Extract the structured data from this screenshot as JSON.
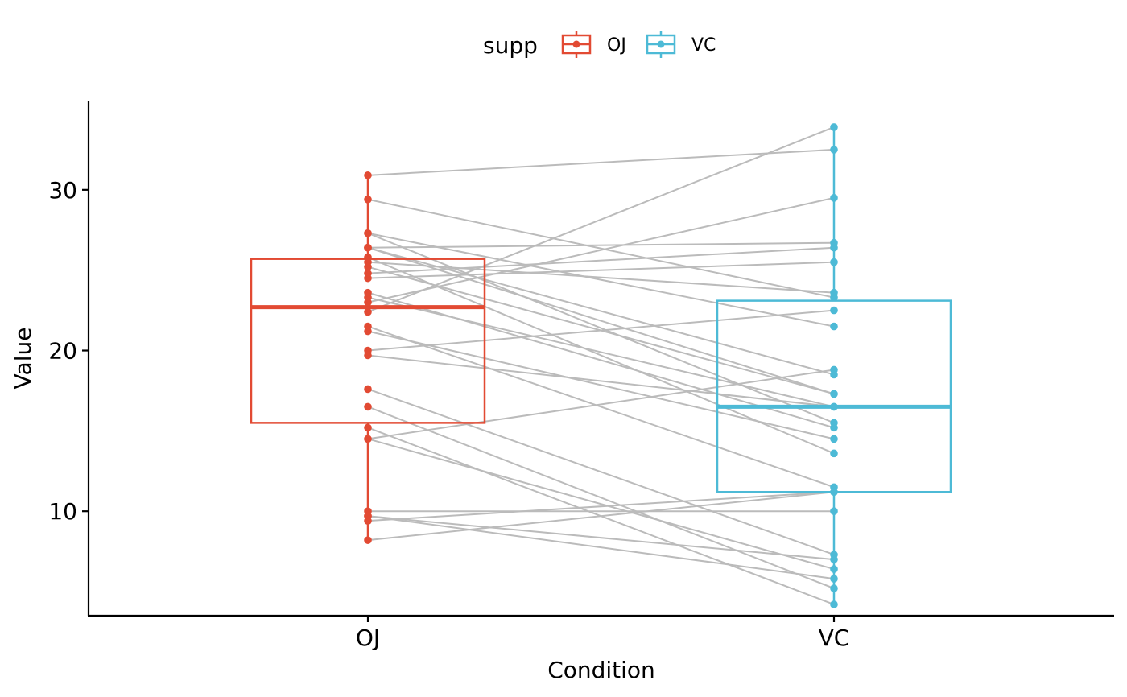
{
  "chart_data": {
    "type": "box",
    "xlabel": "Condition",
    "ylabel": "Value",
    "categories": [
      "OJ",
      "VC"
    ],
    "ylim": [
      3.5,
      35.5
    ],
    "yticks": [
      10,
      20,
      30
    ],
    "grid": false,
    "legend": {
      "title": "supp",
      "position": "top",
      "entries": [
        "OJ",
        "VC"
      ]
    },
    "colors": {
      "OJ": "#E24A33",
      "VC": "#4DBAD6",
      "pair_line": "#BBBBBB",
      "axis": "#000000"
    },
    "series": [
      {
        "name": "OJ",
        "box": {
          "q1": 15.5,
          "median": 22.7,
          "q3": 25.7,
          "whisker_low": 8.2,
          "whisker_high": 30.9
        },
        "values": [
          15.2,
          21.5,
          17.6,
          9.7,
          14.5,
          10.0,
          8.2,
          9.4,
          16.5,
          9.7,
          19.7,
          23.3,
          23.6,
          26.4,
          20.0,
          25.2,
          25.8,
          21.2,
          14.5,
          27.3,
          25.5,
          26.4,
          22.4,
          24.5,
          24.8,
          30.9,
          26.4,
          27.3,
          29.4,
          23.0
        ]
      },
      {
        "name": "VC",
        "box": {
          "q1": 11.2,
          "median": 16.5,
          "q3": 23.1,
          "whisker_low": 4.2,
          "whisker_high": 33.9
        },
        "values": [
          4.2,
          11.5,
          7.3,
          5.8,
          6.4,
          10.0,
          11.2,
          11.2,
          5.2,
          7.0,
          16.5,
          16.5,
          15.2,
          17.3,
          22.5,
          17.3,
          13.6,
          14.5,
          18.8,
          15.5,
          23.6,
          18.5,
          33.9,
          25.5,
          26.4,
          32.5,
          26.7,
          21.5,
          23.3,
          29.5
        ]
      }
    ]
  }
}
